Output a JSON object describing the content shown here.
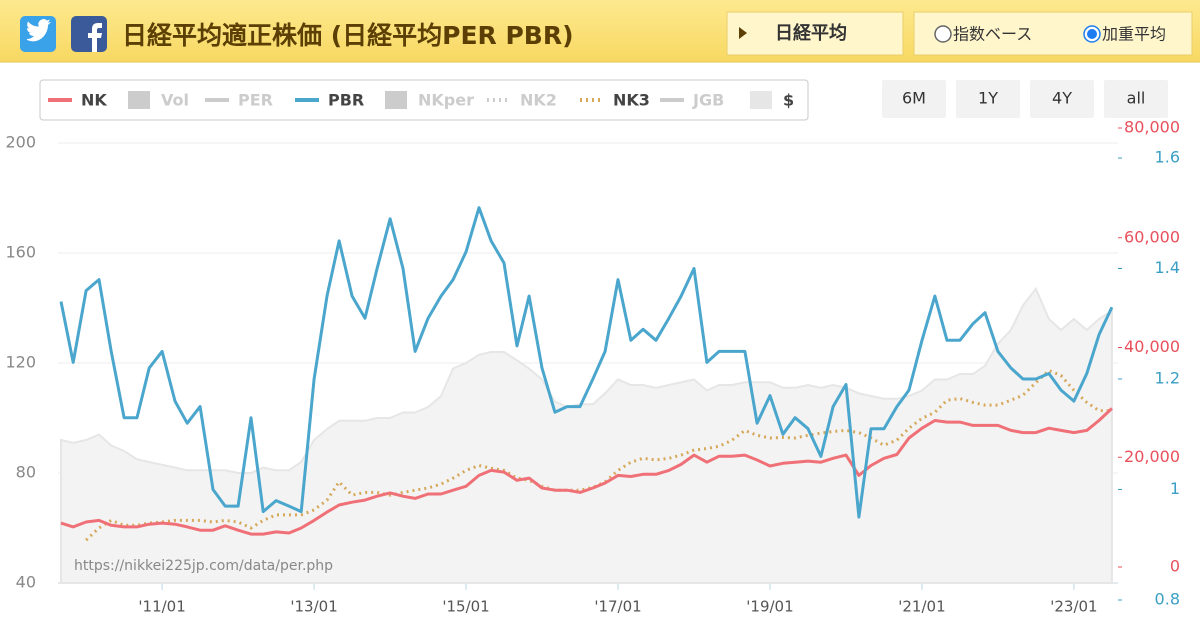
{
  "header": {
    "title": "日経平均適正株価 (日経平均PER PBR)",
    "button": "日経平均",
    "radios": [
      {
        "label": "指数ベース",
        "checked": false
      },
      {
        "label": "加重平均",
        "checked": true
      }
    ]
  },
  "chart_data": {
    "type": "line",
    "source": "https://nikkei225jp.com/data/per.php",
    "range_buttons": [
      "6M",
      "1Y",
      "4Y",
      "all"
    ],
    "x": [
      2009.67,
      2009.83,
      2010,
      2010.17,
      2010.33,
      2010.5,
      2010.67,
      2010.83,
      2011,
      2011.17,
      2011.33,
      2011.5,
      2011.67,
      2011.83,
      2012,
      2012.17,
      2012.33,
      2012.5,
      2012.67,
      2012.83,
      2013,
      2013.17,
      2013.33,
      2013.5,
      2013.67,
      2013.83,
      2014,
      2014.17,
      2014.33,
      2014.5,
      2014.67,
      2014.83,
      2015,
      2015.17,
      2015.33,
      2015.5,
      2015.67,
      2015.83,
      2016,
      2016.17,
      2016.33,
      2016.5,
      2016.67,
      2016.83,
      2017,
      2017.17,
      2017.33,
      2017.5,
      2017.67,
      2017.83,
      2018,
      2018.17,
      2018.33,
      2018.5,
      2018.67,
      2018.83,
      2019,
      2019.17,
      2019.33,
      2019.5,
      2019.67,
      2019.83,
      2020,
      2020.17,
      2020.33,
      2020.5,
      2020.67,
      2020.83,
      2021,
      2021.17,
      2021.33,
      2021.5,
      2021.67,
      2021.83,
      2022,
      2022.17,
      2022.33,
      2022.5,
      2022.67,
      2022.83,
      2023,
      2023.17,
      2023.33,
      2023.5
    ],
    "xlim": [
      2009.63,
      2023.58
    ],
    "xticks": [
      {
        "value": 2011,
        "label": "'11/01"
      },
      {
        "value": 2013,
        "label": "'13/01"
      },
      {
        "value": 2015,
        "label": "'15/01"
      },
      {
        "value": 2017,
        "label": "'17/01"
      },
      {
        "value": 2019,
        "label": "'19/01"
      },
      {
        "value": 2021,
        "label": "'21/01"
      },
      {
        "value": 2023,
        "label": "'23/01"
      }
    ],
    "ylim": [
      40,
      200
    ],
    "yticks": [
      40,
      80,
      120,
      160,
      200
    ],
    "grid": true,
    "y2lim": [
      0,
      80000
    ],
    "y2ticks": [
      0,
      {
        "value": 20000,
        "label": "20,000"
      },
      {
        "value": 40000,
        "label": "40,000"
      },
      {
        "value": 60000,
        "label": "60,000"
      },
      {
        "value": 80000,
        "label": "80,000"
      }
    ],
    "y2color": "#e8505b",
    "y3lim": [
      0.8,
      1.6
    ],
    "y3ticks": [
      0.8,
      1,
      1.2,
      1.4,
      1.6
    ],
    "y3color": "#3a9fc4",
    "series": [
      {
        "name": "NK",
        "color": "#f07077",
        "style": "line",
        "visible": true,
        "axis": "y2",
        "values": [
          8000,
          7300,
          8200,
          8500,
          7600,
          7300,
          7300,
          7800,
          8000,
          7800,
          7300,
          6700,
          6700,
          7500,
          6700,
          6000,
          6000,
          6400,
          6200,
          7100,
          8500,
          10000,
          11300,
          11800,
          12200,
          12900,
          13500,
          12900,
          12500,
          13300,
          13300,
          14000,
          14700,
          16700,
          17600,
          17300,
          15800,
          16200,
          14400,
          14000,
          14000,
          13600,
          14400,
          15300,
          16700,
          16500,
          16900,
          16900,
          17600,
          18700,
          20400,
          19100,
          20200,
          20200,
          20400,
          19500,
          18400,
          18900,
          19100,
          19300,
          19100,
          19800,
          20400,
          16700,
          18500,
          19800,
          20500,
          23500,
          25300,
          26700,
          26400,
          26400,
          25800,
          25800,
          25800,
          24900,
          24500,
          24500,
          25300,
          24900,
          24500,
          24900,
          26700,
          28900
        ]
      },
      {
        "name": "Vol",
        "color": "#cccccc",
        "style": "bar",
        "visible": false
      },
      {
        "name": "PER",
        "color": "#cccccc",
        "style": "line",
        "visible": false
      },
      {
        "name": "PBR",
        "color": "#4aa6cc",
        "style": "line",
        "visible": true,
        "axis": "y3",
        "values": [
          1.34,
          1.23,
          1.36,
          1.38,
          1.25,
          1.13,
          1.13,
          1.22,
          1.25,
          1.16,
          1.12,
          1.15,
          1.0,
          0.97,
          0.97,
          1.13,
          0.96,
          0.98,
          0.97,
          0.96,
          1.2,
          1.35,
          1.45,
          1.35,
          1.31,
          1.4,
          1.49,
          1.4,
          1.25,
          1.31,
          1.35,
          1.38,
          1.43,
          1.51,
          1.45,
          1.41,
          1.26,
          1.35,
          1.22,
          1.14,
          1.15,
          1.15,
          1.2,
          1.25,
          1.38,
          1.27,
          1.29,
          1.27,
          1.31,
          1.35,
          1.4,
          1.23,
          1.25,
          1.25,
          1.25,
          1.12,
          1.17,
          1.1,
          1.13,
          1.11,
          1.06,
          1.15,
          1.19,
          0.95,
          1.11,
          1.11,
          1.15,
          1.18,
          1.27,
          1.35,
          1.27,
          1.27,
          1.3,
          1.32,
          1.25,
          1.22,
          1.2,
          1.2,
          1.21,
          1.18,
          1.16,
          1.21,
          1.28,
          1.33
        ]
      },
      {
        "name": "NKper",
        "color": "#cccccc",
        "style": "bar",
        "visible": false
      },
      {
        "name": "NK2",
        "color": "#cccccc",
        "style": "dotted",
        "visible": false
      },
      {
        "name": "NK3",
        "color": "#d6a85a",
        "style": "dotted",
        "visible": true,
        "axis": "y2",
        "values": [
          null,
          null,
          4900,
          7100,
          8500,
          7600,
          7600,
          8000,
          8200,
          8500,
          8500,
          8500,
          8200,
          8500,
          8200,
          7100,
          8500,
          9500,
          9500,
          9500,
          10400,
          12200,
          15500,
          13100,
          13600,
          13600,
          13100,
          13600,
          14000,
          14400,
          15100,
          16200,
          17600,
          18500,
          18000,
          17600,
          16200,
          15800,
          14700,
          14000,
          14000,
          14000,
          14500,
          15500,
          17600,
          19100,
          19800,
          19500,
          19800,
          20400,
          21300,
          21600,
          22000,
          23100,
          24900,
          24000,
          23500,
          23600,
          23500,
          24000,
          24400,
          24700,
          24900,
          24500,
          23500,
          22200,
          23100,
          25300,
          27100,
          28200,
          30400,
          30700,
          30000,
          29500,
          29500,
          30400,
          31300,
          33600,
          35800,
          34900,
          32200,
          30000,
          28500,
          28500
        ]
      },
      {
        "name": "JGB",
        "color": "#cccccc",
        "style": "line",
        "visible": false
      },
      {
        "name": "$",
        "color": "#e6e6e6",
        "style": "area",
        "visible": true,
        "axis": "y",
        "values": [
          92,
          91,
          92,
          94,
          90,
          88,
          85,
          84,
          83,
          82,
          81,
          81,
          81,
          81,
          80,
          80,
          82,
          81,
          81,
          84,
          92,
          96,
          99,
          99,
          99,
          100,
          100,
          102,
          102,
          104,
          108,
          118,
          120,
          123,
          124,
          124,
          121,
          118,
          114,
          106,
          104,
          105,
          105,
          109,
          114,
          112,
          112,
          111,
          112,
          113,
          114,
          110,
          112,
          112,
          113,
          113,
          113,
          111,
          111,
          112,
          111,
          112,
          111,
          109,
          108,
          107,
          107,
          108,
          110,
          114,
          114,
          116,
          116,
          119,
          127,
          132,
          141,
          147,
          136,
          132,
          136,
          132,
          136,
          139
        ]
      }
    ]
  }
}
